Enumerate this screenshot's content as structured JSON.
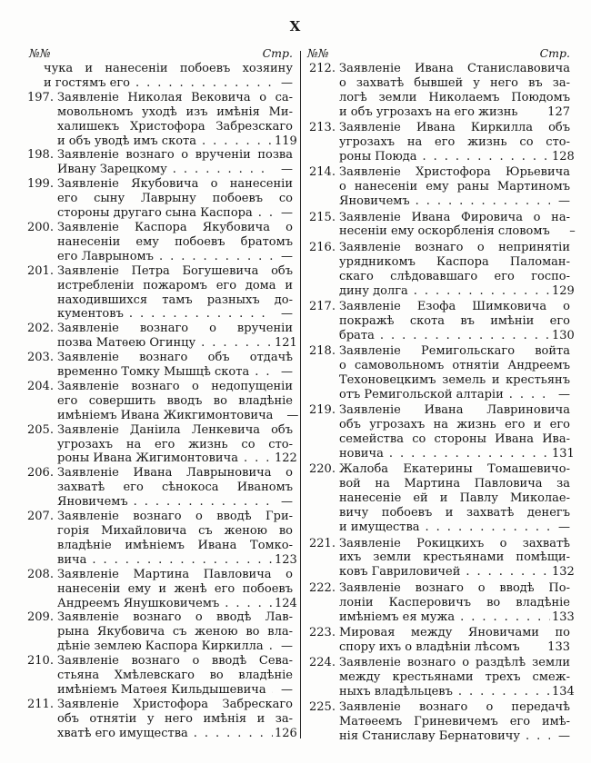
{
  "page": {
    "folio": "X",
    "left_header": {
      "no": "№№",
      "pages": "Стр."
    },
    "right_header": {
      "no": "№№",
      "pages": "Стр."
    }
  },
  "toc": {
    "col1": [
      {
        "num": "",
        "body": [
          "чука и нанесеніи побоевъ хозяину"
        ],
        "tail": "и гостямъ его",
        "dots": true,
        "page": "—"
      },
      {
        "num": "197.",
        "body": [
          "Заявленіе Николая Вековича о са-",
          "мовольномъ уходѣ изъ имѣнія Ми-",
          "халишекъ Христофора Забрезскаго"
        ],
        "tail": "и объ уводѣ имъ скота",
        "dots": true,
        "page": "119"
      },
      {
        "num": "198.",
        "body": [
          "Заявленіе вознаго о врученіи позва"
        ],
        "tail": "Ивану Зарецкому",
        "dots": true,
        "page": "—"
      },
      {
        "num": "199.",
        "body": [
          "Заявленіе Якубовича о нанесеніи",
          "его сыну Лаврыну побоевъ со"
        ],
        "tail": "стороны другаго сына Каспора",
        "dots": true,
        "page": "—"
      },
      {
        "num": "200.",
        "body": [
          "Заявленіе Каспора Якубовича о",
          "нанесеніи ему побоевъ братомъ"
        ],
        "tail": "его Лаврыномъ",
        "dots": true,
        "page": "—"
      },
      {
        "num": "201.",
        "body": [
          "Заявленіе Петра Богушевича объ",
          "истребленіи пожаромъ его дома и",
          "находившихся тамъ разныхъ до-"
        ],
        "tail": "кументовъ",
        "dots": true,
        "page": "—"
      },
      {
        "num": "202.",
        "body": [
          "Заявленіе вознаго о врученіи"
        ],
        "tail": "позва Матѳею Огинцу",
        "dots": true,
        "page": "121"
      },
      {
        "num": "203.",
        "body": [
          "Заявленіе вознаго объ отдачѣ"
        ],
        "tail": "временно Томку Мышцѣ скота",
        "dots": true,
        "page": "—"
      },
      {
        "num": "204.",
        "body": [
          "Заявленіе вознаго о недопущеніи",
          "его совершить вводъ во владѣніе"
        ],
        "tail": "имѣніемъ Ивана Жикгимонтовича",
        "dots": true,
        "page": "—"
      },
      {
        "num": "205.",
        "body": [
          "Заявленіе Даніила Ленкевича объ",
          "угрозахъ на его жизнь со сто-"
        ],
        "tail": "роны Ивана Жигимонтовича",
        "dots": true,
        "page": "122"
      },
      {
        "num": "206.",
        "body": [
          "Заявленіе Ивана Лаврыновича о",
          "захватѣ его сѣнокоса Иваномъ"
        ],
        "tail": "Яновичемъ",
        "dots": true,
        "page": "—"
      },
      {
        "num": "207.",
        "body": [
          "Заявленіе вознаго о вводѣ Гри-",
          "горія Михайловича съ женою во",
          "владѣніе имѣніемъ Ивана Томко-"
        ],
        "tail": "вича",
        "dots": true,
        "page": "123"
      },
      {
        "num": "208.",
        "body": [
          "Заявленіе Мартина Павловича о",
          "нанесеніи ему и женѣ его побоевъ"
        ],
        "tail": "Андреемъ Янушковичемъ",
        "dots": true,
        "page": "124"
      },
      {
        "num": "209.",
        "body": [
          "Заявленіе вознаго о вводѣ Лав-",
          "рына Якубовича съ женою во вла-"
        ],
        "tail": "дѣніе землею Каспора Киркилла",
        "dots": true,
        "page": "—"
      },
      {
        "num": "210.",
        "body": [
          "Заявленіе вознаго о вводѣ Сева-",
          "стьяна Хмѣлевскаго во владѣніе"
        ],
        "tail": "имѣніемъ Матѳея Кильдышевича",
        "dots": true,
        "page": "—"
      },
      {
        "num": "211.",
        "body": [
          "Заявленіе Христофора Забрескаго",
          "объ отнятіи у него имѣнія и за-"
        ],
        "tail": "хватѣ его имущества",
        "dots": true,
        "page": "126"
      }
    ],
    "col2": [
      {
        "num": "212.",
        "body": [
          "Заявленіе Ивана Станиславовича",
          "о захватѣ бывшей у него въ за-",
          "логѣ земли Николаемъ Поюдомъ"
        ],
        "tail": "и объ угрозахъ на его жизнь",
        "dots": false,
        "page": "127"
      },
      {
        "num": "213.",
        "body": [
          "Заявленіе Ивана Киркилла объ",
          "угрозахъ на его жизнь со сто-"
        ],
        "tail": "роны Поюда",
        "dots": true,
        "page": "128"
      },
      {
        "num": "214.",
        "body": [
          "Заявленіе Христофора Юрьевича",
          "о нанесеніи ему раны Мартиномъ"
        ],
        "tail": "Яновичемъ",
        "dots": true,
        "page": "—"
      },
      {
        "num": "215.",
        "body": [
          "Заявленіе Ивана Фировича о на-"
        ],
        "tail": "несеніи ему оскорбленія словомъ",
        "dots": false,
        "page": "–"
      },
      {
        "num": "216.",
        "body": [
          "Заявленіе вознаго о непринятіи",
          "урядникомъ Каспора Паломан-",
          "скаго слѣдовавшаго его госпо-"
        ],
        "tail": "дину долга",
        "dots": true,
        "page": "129"
      },
      {
        "num": "217.",
        "body": [
          "Заявленіе Езофа Шимковича о",
          "покражѣ скота въ имѣніи его"
        ],
        "tail": "брата",
        "dots": true,
        "page": "130"
      },
      {
        "num": "218.",
        "body": [
          "Заявленіе Ремигольскаго войта",
          "о самовольномъ отнятіи Андреемъ",
          "Техоновецкимъ земель и крестьянъ"
        ],
        "tail": "отъ Ремигольской алтаріи",
        "dots": true,
        "page": "—"
      },
      {
        "num": "219.",
        "body": [
          "Заявленіе Ивана Лавриновича",
          "объ угрозахъ на жизнь его и его",
          "семейства со стороны Ивана Ива-"
        ],
        "tail": "новича",
        "dots": true,
        "page": "131"
      },
      {
        "num": "220.",
        "body": [
          "Жалоба Екатерины Томашевичо-",
          "вой на Мартина Павловича за",
          "нанесеніе ей и Павлу Миколае-",
          "вичу побоевъ и захватѣ денегъ"
        ],
        "tail": "и имущества",
        "dots": true,
        "page": "—"
      },
      {
        "num": "221.",
        "body": [
          "Заявленіе Рокицкихъ о захватѣ",
          "ихъ земли крестьянами помѣщи-"
        ],
        "tail": "ковъ Гавриловичей",
        "dots": true,
        "page": "132"
      },
      {
        "num": "222.",
        "body": [
          "Заявленіе вознаго о вводѣ По-",
          "лоніи Касперовичъ во владѣніе"
        ],
        "tail": "имѣніемъ ея мужа",
        "dots": true,
        "page": "133"
      },
      {
        "num": "223.",
        "body": [
          "Мировая между Яновичами по"
        ],
        "tail": "спору ихъ о владѣніи лѣсомъ",
        "dots": false,
        "page": "133"
      },
      {
        "num": "224.",
        "body": [
          "Заявленіе вознаго о раздѣлѣ земли",
          "между крестьянами трехъ смеж-"
        ],
        "tail": "ныхъ владѣльцевъ",
        "dots": true,
        "page": "134"
      },
      {
        "num": "225.",
        "body": [
          "Заявленіе вознаго о передачѣ",
          "Матѳеемъ Гриневичемъ его имѣ-"
        ],
        "tail": "нія Станиславу Бернатовичу",
        "dots": true,
        "page": "—"
      }
    ]
  }
}
